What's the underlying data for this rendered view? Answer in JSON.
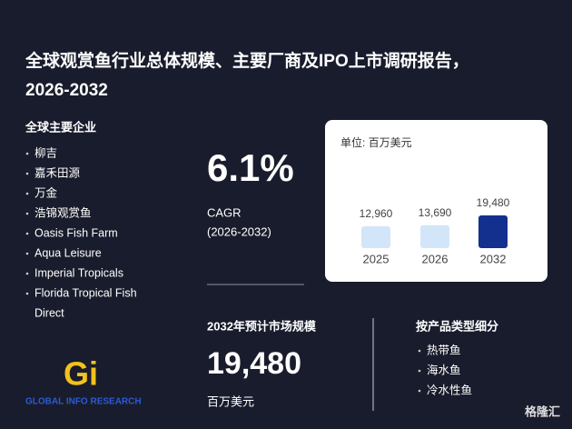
{
  "title_lines": [
    "全球观赏鱼行业总体规模、主要厂商及IPO上市调研报告，",
    "2026-2032"
  ],
  "companies": {
    "heading": "全球主要企业",
    "items": [
      "柳吉",
      "嘉禾田源",
      "万金",
      "浩锦观赏鱼",
      "Oasis Fish Farm",
      "Aqua Leisure",
      "Imperial Tropicals",
      "Florida Tropical Fish",
      "Direct"
    ]
  },
  "cagr": {
    "value": "6.1%",
    "label": "CAGR",
    "period": "(2026-2032)"
  },
  "market": {
    "heading": "2032年预计市场规模",
    "value": "19,480",
    "unit": "百万美元"
  },
  "segments": {
    "heading": "按产品类型细分",
    "items": [
      "热带鱼",
      "海水鱼",
      "冷水性鱼"
    ]
  },
  "logo": {
    "mark": "Gi",
    "name": "GLOBAL INFO RESEARCH"
  },
  "watermark": "格隆汇",
  "chart_data": {
    "type": "bar",
    "unit_label": "单位: 百万美元",
    "categories": [
      "2025",
      "2026",
      "2032"
    ],
    "values": [
      12960,
      13690,
      19480
    ],
    "value_labels": [
      "12,960",
      "13,690",
      "19,480"
    ],
    "colors": [
      "#d3e5f8",
      "#d3e5f8",
      "#14308e"
    ]
  }
}
